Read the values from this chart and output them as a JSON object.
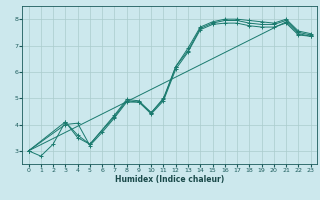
{
  "title": "",
  "xlabel": "Humidex (Indice chaleur)",
  "bg_color": "#cce8ed",
  "line_color": "#1a7a6e",
  "grid_color": "#aacccc",
  "xlim": [
    -0.5,
    23.5
  ],
  "ylim": [
    2.5,
    8.5
  ],
  "xticks": [
    0,
    1,
    2,
    3,
    4,
    5,
    6,
    7,
    8,
    9,
    10,
    11,
    12,
    13,
    14,
    15,
    16,
    17,
    18,
    19,
    20,
    21,
    22,
    23
  ],
  "yticks": [
    3,
    4,
    5,
    6,
    7,
    8
  ],
  "series": [
    {
      "x": [
        0,
        1,
        2,
        3,
        4,
        5,
        7,
        8,
        9,
        10,
        11,
        12,
        13,
        14,
        15,
        16,
        17,
        18,
        19,
        20,
        21,
        22,
        23
      ],
      "y": [
        3.0,
        2.8,
        3.25,
        4.1,
        3.6,
        3.25,
        4.35,
        4.95,
        4.9,
        4.45,
        5.0,
        6.2,
        6.9,
        7.7,
        7.9,
        8.0,
        8.0,
        7.95,
        7.9,
        7.85,
        8.0,
        7.55,
        7.45
      ]
    },
    {
      "x": [
        0,
        3,
        4,
        5,
        7,
        8,
        9,
        10,
        11,
        12,
        13,
        14,
        15,
        16,
        17,
        18,
        19,
        20,
        21,
        22,
        23
      ],
      "y": [
        3.0,
        4.1,
        3.5,
        3.25,
        4.3,
        4.9,
        4.85,
        4.45,
        4.95,
        6.2,
        6.8,
        7.65,
        7.85,
        7.95,
        7.95,
        7.85,
        7.8,
        7.8,
        7.95,
        7.5,
        7.4
      ]
    },
    {
      "x": [
        0,
        3,
        4,
        5,
        6,
        7,
        8,
        9,
        10,
        11,
        12,
        13,
        14,
        15,
        16,
        17,
        18,
        19,
        20,
        21,
        22,
        23
      ],
      "y": [
        3.0,
        4.0,
        4.05,
        3.2,
        3.7,
        4.25,
        4.85,
        4.85,
        4.4,
        4.9,
        6.1,
        6.75,
        7.6,
        7.8,
        7.85,
        7.85,
        7.75,
        7.7,
        7.7,
        7.85,
        7.4,
        7.35
      ]
    },
    {
      "x": [
        0,
        21,
        22,
        23
      ],
      "y": [
        3.0,
        7.9,
        7.45,
        7.35
      ]
    }
  ]
}
